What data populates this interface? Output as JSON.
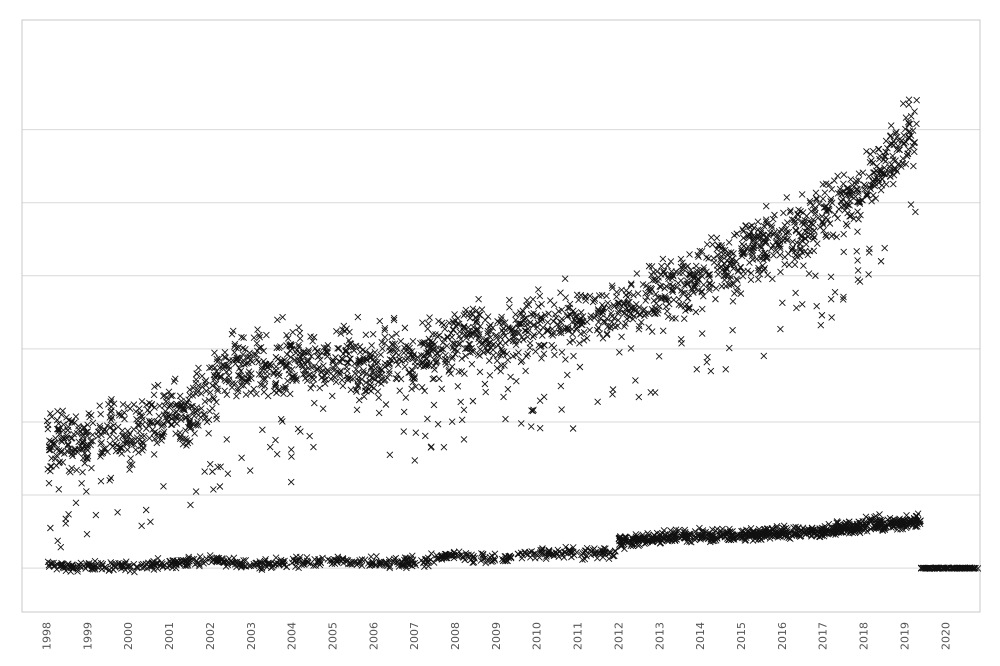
{
  "chart_data": {
    "type": "scatter",
    "title": "",
    "xlabel": "",
    "ylabel": "",
    "xlim": [
      1997.4,
      2020.85
    ],
    "ylim": [
      -1.2,
      15.0
    ],
    "grid": true,
    "legend": "none",
    "marker": "x",
    "marker_color": "#111111",
    "x_ticks": [
      "1998",
      "1999",
      "2000",
      "2001",
      "2002",
      "2003",
      "2004",
      "2005",
      "2006",
      "2007",
      "2008",
      "2009",
      "2010",
      "2011",
      "2012",
      "2013",
      "2014",
      "2015",
      "2016",
      "2017",
      "2018",
      "2019",
      "2020"
    ],
    "y_gridlines": [
      0,
      2,
      4,
      6,
      8,
      10,
      12
    ],
    "series": [
      {
        "values": [
          {
            "x": 1998.0,
            "y": 3.6
          },
          {
            "x": 1998.5,
            "y": 3.5
          },
          {
            "x": 1999.0,
            "y": 3.4
          },
          {
            "x": 1999.5,
            "y": 4.0
          },
          {
            "x": 2000.0,
            "y": 3.7
          },
          {
            "x": 2000.5,
            "y": 3.9
          },
          {
            "x": 2001.0,
            "y": 4.3
          },
          {
            "x": 2001.5,
            "y": 4.2
          },
          {
            "x": 2002.0,
            "y": 4.9
          },
          {
            "x": 2002.5,
            "y": 5.5
          },
          {
            "x": 2003.0,
            "y": 5.6
          },
          {
            "x": 2003.5,
            "y": 5.5
          },
          {
            "x": 2004.0,
            "y": 5.7
          },
          {
            "x": 2004.5,
            "y": 5.6
          },
          {
            "x": 2005.0,
            "y": 5.5
          },
          {
            "x": 2005.5,
            "y": 5.6
          },
          {
            "x": 2006.0,
            "y": 5.5
          },
          {
            "x": 2006.5,
            "y": 5.7
          },
          {
            "x": 2007.0,
            "y": 5.6
          },
          {
            "x": 2007.5,
            "y": 5.9
          },
          {
            "x": 2008.0,
            "y": 6.2
          },
          {
            "x": 2008.5,
            "y": 6.4
          },
          {
            "x": 2009.0,
            "y": 6.3
          },
          {
            "x": 2009.5,
            "y": 6.4
          },
          {
            "x": 2010.0,
            "y": 6.6
          },
          {
            "x": 2010.5,
            "y": 6.7
          },
          {
            "x": 2011.0,
            "y": 6.8
          },
          {
            "x": 2011.5,
            "y": 7.0
          },
          {
            "x": 2012.0,
            "y": 7.1
          },
          {
            "x": 2012.5,
            "y": 7.3
          },
          {
            "x": 2013.0,
            "y": 7.5
          },
          {
            "x": 2013.5,
            "y": 7.8
          },
          {
            "x": 2014.0,
            "y": 8.0
          },
          {
            "x": 2014.5,
            "y": 8.3
          },
          {
            "x": 2015.0,
            "y": 8.5
          },
          {
            "x": 2015.5,
            "y": 8.8
          },
          {
            "x": 2016.0,
            "y": 9.0
          },
          {
            "x": 2016.5,
            "y": 9.3
          },
          {
            "x": 2017.0,
            "y": 9.6
          },
          {
            "x": 2017.5,
            "y": 10.0
          },
          {
            "x": 2018.0,
            "y": 10.4
          },
          {
            "x": 2018.5,
            "y": 11.0
          },
          {
            "x": 2019.0,
            "y": 11.6
          },
          {
            "x": 2019.3,
            "y": 12.2
          }
        ],
        "spread": 0.75
      },
      {
        "values": [
          {
            "x": 1998.0,
            "y": 0.05
          },
          {
            "x": 2000.0,
            "y": 0.05
          },
          {
            "x": 2001.0,
            "y": 0.1
          },
          {
            "x": 2002.0,
            "y": 0.25
          },
          {
            "x": 2003.0,
            "y": 0.1
          },
          {
            "x": 2005.0,
            "y": 0.2
          },
          {
            "x": 2007.0,
            "y": 0.15
          },
          {
            "x": 2008.0,
            "y": 0.35
          },
          {
            "x": 2009.0,
            "y": 0.25
          },
          {
            "x": 2010.0,
            "y": 0.4
          },
          {
            "x": 2011.0,
            "y": 0.45
          },
          {
            "x": 2011.9,
            "y": 0.4
          },
          {
            "x": 2012.0,
            "y": 0.75
          },
          {
            "x": 2013.0,
            "y": 0.8
          },
          {
            "x": 2014.0,
            "y": 0.85
          },
          {
            "x": 2015.0,
            "y": 0.9
          },
          {
            "x": 2016.0,
            "y": 1.0
          },
          {
            "x": 2017.0,
            "y": 1.0
          },
          {
            "x": 2018.0,
            "y": 1.1
          },
          {
            "x": 2019.0,
            "y": 1.2
          },
          {
            "x": 2019.4,
            "y": 1.2
          }
        ],
        "spread": 0.12
      },
      {
        "values": [
          {
            "x": 2012.0,
            "y": 0.75
          },
          {
            "x": 2013.0,
            "y": 0.85
          },
          {
            "x": 2014.0,
            "y": 0.9
          },
          {
            "x": 2015.0,
            "y": 0.9
          },
          {
            "x": 2016.0,
            "y": 0.95
          },
          {
            "x": 2017.0,
            "y": 1.0
          },
          {
            "x": 2018.0,
            "y": 1.25
          },
          {
            "x": 2019.0,
            "y": 1.25
          },
          {
            "x": 2019.4,
            "y": 1.3
          }
        ],
        "spread": 0.15
      },
      {
        "values": [
          {
            "x": 2019.4,
            "y": 0.0
          },
          {
            "x": 2020.0,
            "y": 0.0
          },
          {
            "x": 2020.8,
            "y": 0.0
          }
        ],
        "spread": 0.01
      }
    ]
  }
}
